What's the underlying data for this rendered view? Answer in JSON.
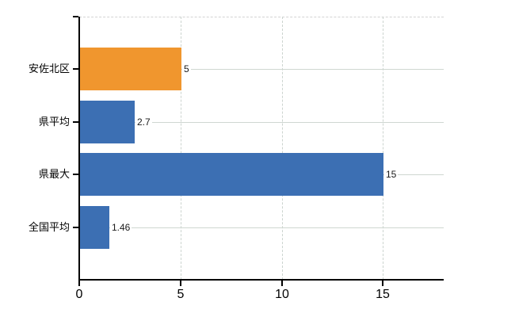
{
  "chart_data": {
    "type": "bar",
    "orientation": "horizontal",
    "title": "",
    "xlabel": "",
    "ylabel": "",
    "categories": [
      "安佐北区",
      "県平均",
      "県最大",
      "全国平均"
    ],
    "values": [
      5,
      2.7,
      15,
      1.46
    ],
    "value_labels": [
      "5",
      "2.7",
      "15",
      "1.46"
    ],
    "bar_colors": [
      "#f0962e",
      "#3c6fb3",
      "#3c6fb3",
      "#3c6fb3"
    ],
    "highlight_color": "#f0962e",
    "base_color": "#3c6fb3",
    "xlim": [
      0,
      18
    ],
    "x_ticks": [
      0,
      5,
      10,
      15
    ],
    "x_tick_labels": [
      "0",
      "5",
      "10",
      "15"
    ],
    "grid": true,
    "legend": null,
    "gridline_color": "#cfd7d1",
    "axis_color": "#000000"
  },
  "layout_note": "horizontal bar chart, no title, no legend"
}
